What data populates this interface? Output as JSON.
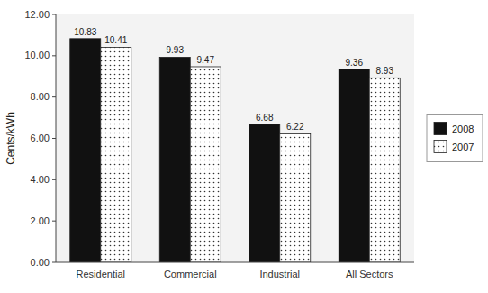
{
  "chart_data": {
    "type": "bar",
    "ylabel": "Cents/kWh",
    "categories": [
      "Residential",
      "Commercial",
      "Industrial",
      "All Sectors"
    ],
    "series": [
      {
        "name": "2008",
        "color": "#111111",
        "values": [
          10.83,
          9.93,
          6.68,
          9.36
        ]
      },
      {
        "name": "2007",
        "color": "#ffffff",
        "values": [
          10.41,
          9.47,
          6.22,
          8.93
        ]
      }
    ],
    "ylim": [
      0,
      12.0
    ],
    "yticks": [
      {
        "value": 0,
        "label": "0.00"
      },
      {
        "value": 2,
        "label": "2.00"
      },
      {
        "value": 4,
        "label": "4.00"
      },
      {
        "value": 6,
        "label": "6.00"
      },
      {
        "value": 8,
        "label": "8.00"
      },
      {
        "value": 10,
        "label": "10.00"
      },
      {
        "value": 12,
        "label": "12.00"
      }
    ],
    "grid": false,
    "legend": "right",
    "data_labels": true
  }
}
